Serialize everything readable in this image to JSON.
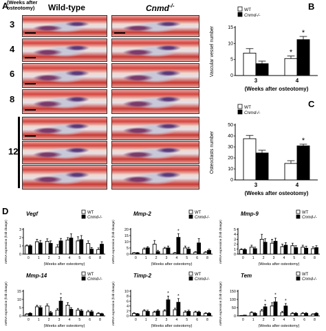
{
  "panel_a": {
    "letter": "A",
    "weeks_header": [
      "(Weeks after",
      "osteotomy)"
    ],
    "col_wt": "Wild-type",
    "col_ko": "Cnmd",
    "col_ko_sup": "-/-",
    "rows": [
      "3",
      "4",
      "6",
      "8",
      "12"
    ]
  },
  "colors": {
    "wt_fill": "#ffffff",
    "ko_fill": "#000000",
    "stroke": "#000000"
  },
  "chart_data": [
    {
      "id": "B",
      "type": "bar",
      "letter": "B",
      "ylabel": "Vascular vessel number",
      "xlabel": "(Weeks after osteotomy)",
      "categories": [
        "3",
        "4"
      ],
      "ylim": [
        0,
        15
      ],
      "yticks": [
        0,
        5,
        10,
        15
      ],
      "legend": [
        "WT",
        "Cnmd-/-"
      ],
      "series": [
        {
          "name": "WT",
          "values": [
            7,
            5.3
          ],
          "errors": [
            1.4,
            0.8
          ]
        },
        {
          "name": "Cnmd-/-",
          "values": [
            3.7,
            11.2
          ],
          "errors": [
            0.8,
            1.0
          ]
        }
      ],
      "stars": [
        [
          false,
          true
        ],
        [
          false,
          true
        ]
      ]
    },
    {
      "id": "C",
      "type": "bar",
      "letter": "C",
      "ylabel": "Osteoclasts number",
      "xlabel": "(Weeks after osteotomy)",
      "categories": [
        "3",
        "4"
      ],
      "ylim": [
        0,
        50
      ],
      "yticks": [
        0,
        10,
        20,
        30,
        40,
        50
      ],
      "legend": [
        "WT",
        "Cnmd-/-"
      ],
      "series": [
        {
          "name": "WT",
          "values": [
            37.5,
            15
          ],
          "errors": [
            3,
            2.5
          ]
        },
        {
          "name": "Cnmd-/-",
          "values": [
            24.5,
            31
          ],
          "errors": [
            2.5,
            1.5
          ]
        }
      ],
      "stars": [
        [
          false,
          false
        ],
        [
          false,
          true
        ]
      ]
    },
    {
      "id": "vegf",
      "type": "bar",
      "title": "Vegf",
      "ylabel": "mRNA expression (fold change)",
      "xlabel": "(Weeks after osteotomy)",
      "categories": [
        "0",
        "1",
        "2",
        "3",
        "4",
        "5",
        "6",
        "8"
      ],
      "ylim": [
        0,
        3
      ],
      "yticks": [
        0,
        1,
        2,
        3
      ],
      "legend": [
        "WT",
        "Cnmd-/-"
      ],
      "series": [
        {
          "name": "WT",
          "values": [
            1.0,
            1.5,
            1.55,
            0.85,
            1.7,
            1.6,
            1.3,
            0.55
          ],
          "errors": [
            0.1,
            0.3,
            0.3,
            0.3,
            0.3,
            0.5,
            0.3,
            0.2
          ]
        },
        {
          "name": "Cnmd-/-",
          "values": [
            1.0,
            1.35,
            1.3,
            1.6,
            1.95,
            1.75,
            0.6,
            1.2
          ],
          "errors": [
            0.1,
            0.3,
            0.3,
            0.3,
            0.5,
            0.5,
            0.2,
            0.3
          ]
        }
      ],
      "stars": [
        [
          false,
          false,
          false,
          false,
          false,
          false,
          false,
          false
        ],
        [
          false,
          false,
          false,
          false,
          false,
          false,
          false,
          false
        ]
      ]
    },
    {
      "id": "mmp2",
      "type": "bar",
      "title": "Mmp-2",
      "ylabel": "mRNA expression (fold change)",
      "xlabel": "(Weeks after osteotomy)",
      "categories": [
        "0",
        "1",
        "2",
        "3",
        "4",
        "5",
        "6",
        "8"
      ],
      "ylim": [
        0,
        20
      ],
      "yticks": [
        0,
        5,
        10,
        15,
        20
      ],
      "legend": [
        "WT",
        "Cnmd-/-"
      ],
      "series": [
        {
          "name": "WT",
          "values": [
            1.0,
            4.0,
            8.0,
            4.5,
            1.0,
            5.0,
            1.5,
            1.5
          ],
          "errors": [
            0.3,
            1.0,
            3.0,
            1.0,
            0.3,
            1.5,
            0.5,
            0.5
          ]
        },
        {
          "name": "Cnmd-/-",
          "values": [
            1.0,
            5.0,
            2.0,
            5.0,
            13.5,
            4.0,
            9.0,
            3.0
          ],
          "errors": [
            0.3,
            1.0,
            1.0,
            1.5,
            3.0,
            1.5,
            3.5,
            1.0
          ]
        }
      ],
      "stars": [
        [
          false,
          false,
          false,
          false,
          false,
          false,
          false,
          false
        ],
        [
          false,
          false,
          false,
          false,
          true,
          false,
          false,
          false
        ]
      ]
    },
    {
      "id": "mmp9",
      "type": "bar",
      "title": "Mmp-9",
      "ylabel": "mRNA expression (fold change)",
      "xlabel": "(Weeks after osteotomy)",
      "categories": [
        "0",
        "1",
        "2",
        "3",
        "4",
        "5",
        "6",
        "8"
      ],
      "ylim": [
        0,
        5
      ],
      "yticks": [
        0,
        1,
        2,
        3,
        4,
        5
      ],
      "legend": [
        "WT",
        "Cnmd-/-"
      ],
      "series": [
        {
          "name": "WT",
          "values": [
            0.9,
            1.4,
            3.0,
            2.2,
            1.5,
            1.7,
            1.4,
            1.1
          ],
          "errors": [
            0.2,
            0.4,
            1.0,
            0.8,
            0.5,
            0.5,
            0.4,
            0.4
          ]
        },
        {
          "name": "Cnmd-/-",
          "values": [
            0.9,
            1.1,
            2.4,
            2.6,
            1.8,
            1.3,
            1.2,
            1.3
          ],
          "errors": [
            0.2,
            0.3,
            0.7,
            0.6,
            0.5,
            0.4,
            0.4,
            0.4
          ]
        }
      ],
      "stars": [
        [
          false,
          false,
          false,
          false,
          false,
          false,
          false,
          false
        ],
        [
          false,
          false,
          false,
          false,
          false,
          false,
          false,
          false
        ]
      ]
    },
    {
      "id": "mmp14",
      "type": "bar",
      "title": "Mmp-14",
      "ylabel": "mRNA expression (fold change)",
      "xlabel": "(Weeks after osteotomy)",
      "categories": [
        "0",
        "1",
        "2",
        "3",
        "4",
        "5",
        "6",
        "8"
      ],
      "ylim": [
        0,
        15
      ],
      "yticks": [
        0,
        5,
        10,
        15
      ],
      "legend": [
        "WT",
        "Cnmd-/-"
      ],
      "series": [
        {
          "name": "WT",
          "values": [
            1.0,
            5.5,
            6.0,
            3.5,
            6.5,
            3.5,
            2.5,
            1.5
          ],
          "errors": [
            0.3,
            1.0,
            1.2,
            1.0,
            1.5,
            1.0,
            0.8,
            0.5
          ]
        },
        {
          "name": "Cnmd-/-",
          "values": [
            1.5,
            5.0,
            2.0,
            9.0,
            4.0,
            3.0,
            2.5,
            1.2
          ],
          "errors": [
            0.4,
            1.0,
            0.8,
            2.0,
            1.0,
            0.8,
            0.8,
            0.4
          ]
        }
      ],
      "stars": [
        [
          false,
          false,
          false,
          false,
          false,
          false,
          false,
          false
        ],
        [
          false,
          false,
          false,
          true,
          false,
          false,
          false,
          false
        ]
      ]
    },
    {
      "id": "timp2",
      "type": "bar",
      "title": "Timp-2",
      "ylabel": "mRNA expression (fold change)",
      "xlabel": "(Weeks after osteotomy)",
      "categories": [
        "0",
        "1",
        "2",
        "3",
        "4",
        "5",
        "6",
        "8"
      ],
      "ylim": [
        0,
        10
      ],
      "yticks": [
        0,
        2,
        4,
        6,
        8,
        10
      ],
      "legend": [
        "WT",
        "Cnmd-/-"
      ],
      "series": [
        {
          "name": "WT",
          "values": [
            1.0,
            2.0,
            1.5,
            2.0,
            2.5,
            1.5,
            1.5,
            1.0
          ],
          "errors": [
            0.3,
            0.5,
            0.4,
            0.5,
            0.6,
            0.5,
            0.4,
            0.3
          ]
        },
        {
          "name": "Cnmd-/-",
          "values": [
            0.8,
            1.8,
            2.0,
            6.5,
            5.5,
            1.8,
            1.5,
            1.0
          ],
          "errors": [
            0.2,
            0.5,
            0.5,
            1.5,
            1.5,
            0.5,
            0.4,
            0.3
          ]
        }
      ],
      "stars": [
        [
          false,
          false,
          false,
          false,
          false,
          false,
          false,
          false
        ],
        [
          false,
          false,
          false,
          true,
          true,
          false,
          false,
          false
        ]
      ]
    },
    {
      "id": "tem",
      "type": "bar",
      "title": "Tem",
      "ylabel": "mRNA expression (fold change)",
      "xlabel": "(Weeks after osteotomy)",
      "categories": [
        "0",
        "1",
        "2",
        "3",
        "4",
        "5",
        "6",
        "8"
      ],
      "ylim": [
        0,
        150
      ],
      "yticks": [
        0,
        50,
        100,
        150
      ],
      "legend": [
        "WT",
        "Cnmd-/-"
      ],
      "series": [
        {
          "name": "WT",
          "values": [
            2,
            20,
            30,
            60,
            20,
            15,
            15,
            10
          ],
          "errors": [
            1,
            5,
            10,
            20,
            8,
            5,
            5,
            3
          ]
        },
        {
          "name": "Cnmd-/-",
          "values": [
            4,
            15,
            55,
            85,
            60,
            15,
            15,
            15
          ],
          "errors": [
            1,
            5,
            15,
            25,
            15,
            5,
            5,
            5
          ]
        }
      ],
      "stars": [
        [
          false,
          false,
          false,
          false,
          false,
          false,
          false,
          false
        ],
        [
          false,
          false,
          true,
          true,
          true,
          false,
          false,
          false
        ]
      ]
    }
  ],
  "panel_d": {
    "letter": "D"
  }
}
